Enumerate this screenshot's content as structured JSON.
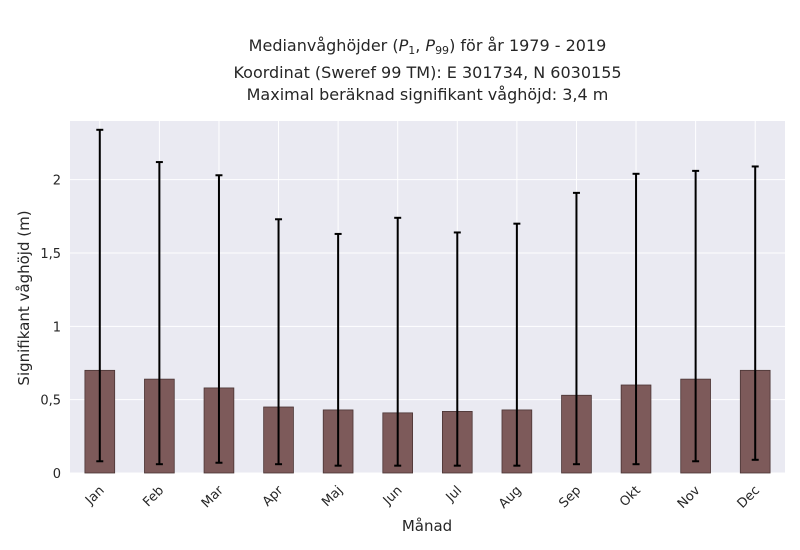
{
  "chart_data": {
    "type": "bar",
    "title": {
      "line1_prefix": "Medianvåghöjder (",
      "p_symbol": "P",
      "sub_1": "1",
      "sub_2": "99",
      "separator": ", ",
      "line1_suffix": ") för år 1979 - 2019",
      "line2": "Koordinat (Sweref 99 TM): E 301734, N 6030155",
      "line3": "Maximal beräknad signifikant våghöjd: 3,4 m"
    },
    "xlabel": "Månad",
    "ylabel": "Signifikant våghöjd (m)",
    "categories": [
      "Jan",
      "Feb",
      "Mar",
      "Apr",
      "Maj",
      "Jun",
      "Jul",
      "Aug",
      "Sep",
      "Okt",
      "Nov",
      "Dec"
    ],
    "series": [
      {
        "values": [
          0.7,
          0.64,
          0.58,
          0.45,
          0.43,
          0.41,
          0.42,
          0.43,
          0.53,
          0.6,
          0.64,
          0.7
        ],
        "error_low": [
          0.08,
          0.06,
          0.07,
          0.06,
          0.05,
          0.05,
          0.05,
          0.05,
          0.06,
          0.06,
          0.08,
          0.09
        ],
        "error_high": [
          2.34,
          2.12,
          2.03,
          1.73,
          1.63,
          1.74,
          1.64,
          1.7,
          1.91,
          2.04,
          2.06,
          2.09
        ]
      }
    ],
    "ylim": [
      0,
      2.4
    ],
    "yticks": [
      0,
      0.5,
      1,
      1.5,
      2
    ],
    "ytick_labels": [
      "0",
      "0,5",
      "1",
      "1,5",
      "2"
    ],
    "grid": true,
    "colors": {
      "bar": "#7d5a5a",
      "bar_edge": "#4a3434",
      "error": "#000000",
      "background": "#eaeaf2",
      "grid": "#ffffff"
    }
  }
}
